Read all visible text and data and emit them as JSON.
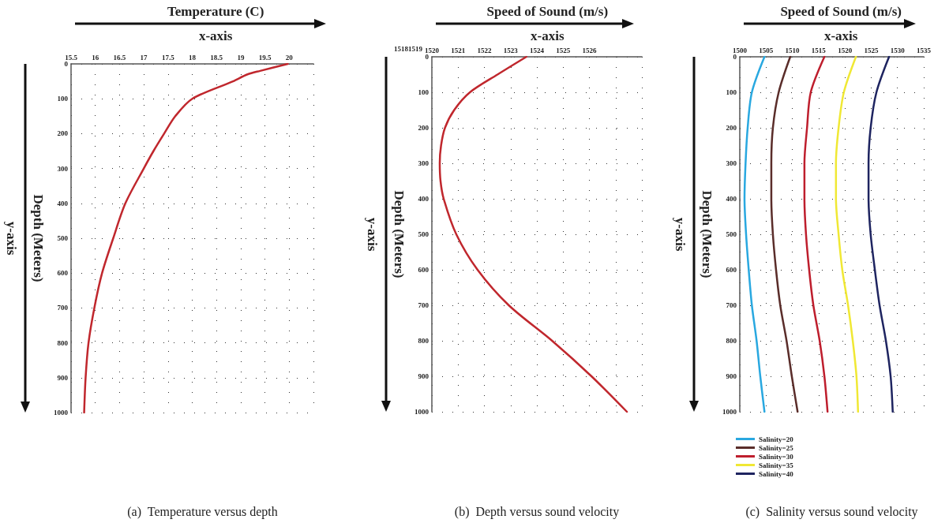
{
  "chart_data": [
    {
      "type": "line",
      "xlabel": "Temperature (C)",
      "ylabel": "Depth (Meters)",
      "annotations": [
        "x-axis",
        "y-axis",
        "(a)  Temperature versus depth"
      ],
      "xlim": [
        15.5,
        20.5
      ],
      "xticks": [
        15.5,
        16,
        16.5,
        17,
        17.5,
        18,
        18.5,
        19,
        19.5,
        20,
        {
          "value": 20.5,
          "label": null
        }
      ],
      "ylim": [
        1000,
        0
      ],
      "yticks": [
        0,
        100,
        200,
        300,
        400,
        500,
        600,
        700,
        800,
        900,
        1000
      ],
      "grid": true,
      "line_style": "solid",
      "series": [
        {
          "color": "#c0272d",
          "x": [
            19.97,
            19.4,
            19.14,
            18.84,
            18.0,
            17.65,
            17.42,
            17.2,
            17.0,
            16.62,
            16.37,
            16.14,
            15.98,
            15.86,
            15.8,
            15.77
          ],
          "values": [
            0,
            20,
            30,
            50,
            100,
            150,
            200,
            250,
            300,
            400,
            500,
            600,
            700,
            800,
            900,
            1000
          ]
        }
      ]
    },
    {
      "type": "line",
      "xlabel": "Speed of Sound (m/s)",
      "ylabel": "Depth (Meters)",
      "annotations": [
        "x-axis",
        "y-axis",
        "(b)  Depth versus sound velocity",
        "15181519"
      ],
      "xlim": [
        1520,
        1528
      ],
      "xticks": [
        1520,
        1521,
        1522,
        1523,
        1524,
        1525,
        1526,
        {
          "value": 1527,
          "label": null
        },
        {
          "value": 1528,
          "label": null
        }
      ],
      "ylim": [
        1000,
        0
      ],
      "yticks": [
        0,
        100,
        200,
        300,
        400,
        500,
        600,
        700,
        800,
        900,
        1000
      ],
      "grid": true,
      "line_style": "solid",
      "series": [
        {
          "color": "#c0272d",
          "x": [
            1523.6,
            1522.5,
            1521.45,
            1520.85,
            1520.5,
            1520.35,
            1520.3,
            1520.33,
            1520.45,
            1520.93,
            1521.74,
            1522.93,
            1524.58,
            1526.08,
            1527.43
          ],
          "values": [
            0,
            50,
            100,
            150,
            200,
            250,
            300,
            350,
            400,
            500,
            600,
            700,
            800,
            900,
            1000
          ]
        }
      ]
    },
    {
      "type": "line",
      "xlabel": "Speed of Sound (m/s)",
      "ylabel": "Depth (Meters)",
      "annotations": [
        "x-axis",
        "y-axis",
        "(c)  Salinity versus sound velocity"
      ],
      "xlim": [
        1500,
        1535
      ],
      "xticks": [
        1500,
        1505,
        1510,
        1515,
        1520,
        1525,
        1530,
        1535
      ],
      "ylim": [
        1000,
        0
      ],
      "yticks": [
        0,
        100,
        200,
        300,
        400,
        500,
        600,
        700,
        800,
        900,
        1000
      ],
      "grid": true,
      "line_style": "solid",
      "legend": "bottom left",
      "series": [
        {
          "name": "Salinity=20",
          "color": "#29a8e0",
          "x": [
            1504.7,
            1502.3,
            1501.5,
            1501.1,
            1500.9,
            1501.2,
            1501.7,
            1502.3,
            1503.2,
            1503.9,
            1504.7
          ],
          "values": [
            0,
            100,
            200,
            300,
            400,
            500,
            600,
            700,
            800,
            900,
            1000
          ]
        },
        {
          "name": "Salinity=25",
          "color": "#5a2d2a",
          "x": [
            1509.6,
            1507.4,
            1506.3,
            1506.0,
            1506.0,
            1506.3,
            1506.9,
            1507.7,
            1508.9,
            1509.9,
            1511.0
          ],
          "values": [
            0,
            100,
            200,
            300,
            400,
            500,
            600,
            700,
            800,
            900,
            1000
          ]
        },
        {
          "name": "Salinity=30",
          "color": "#be1e2d",
          "x": [
            1516.1,
            1513.5,
            1512.8,
            1512.3,
            1512.3,
            1512.6,
            1513.2,
            1514.0,
            1515.2,
            1516.1,
            1516.7
          ],
          "values": [
            0,
            100,
            200,
            300,
            400,
            500,
            600,
            700,
            800,
            900,
            1000
          ]
        },
        {
          "name": "Salinity=35",
          "color": "#f0e834",
          "x": [
            1522.1,
            1519.8,
            1518.8,
            1518.3,
            1518.3,
            1518.8,
            1519.5,
            1520.6,
            1521.5,
            1522.2,
            1522.5
          ],
          "values": [
            0,
            100,
            200,
            300,
            400,
            500,
            600,
            700,
            800,
            900,
            1000
          ]
        },
        {
          "name": "Salinity=40",
          "color": "#1e2460",
          "x": [
            1528.4,
            1526.0,
            1524.9,
            1524.5,
            1524.5,
            1524.9,
            1525.7,
            1526.6,
            1527.8,
            1528.7,
            1529.1
          ],
          "values": [
            0,
            100,
            200,
            300,
            400,
            500,
            600,
            700,
            800,
            900,
            1000
          ]
        }
      ]
    }
  ]
}
